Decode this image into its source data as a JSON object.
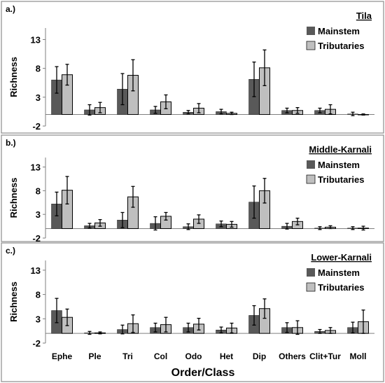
{
  "figure": {
    "xlabel": "Order/Class",
    "categories": [
      "Ephe",
      "Ple",
      "Tri",
      "Col",
      "Odo",
      "Het",
      "Dip",
      "Others",
      "Clit+Tur",
      "Moll"
    ],
    "colors": {
      "mainstem": "#595959",
      "tributaries": "#bfbfbf",
      "frame": "#8c8c8c"
    }
  },
  "chart_data": [
    {
      "type": "bar",
      "panel": "a.)",
      "title": "Tila",
      "ylabel": "Richness",
      "ylim": [
        -2,
        15
      ],
      "yticks": [
        -2,
        3,
        8,
        13
      ],
      "legend_position": "top-right",
      "categories": [
        "Ephe",
        "Ple",
        "Tri",
        "Col",
        "Odo",
        "Het",
        "Dip",
        "Others",
        "Clit+Tur",
        "Moll"
      ],
      "series": [
        {
          "name": "Mainstem",
          "values": [
            6.0,
            0.8,
            4.4,
            0.8,
            0.4,
            0.5,
            6.1,
            0.7,
            0.7,
            0.1
          ],
          "errors": [
            2.3,
            0.9,
            2.7,
            0.6,
            0.3,
            0.4,
            3.0,
            0.4,
            0.4,
            0.3
          ]
        },
        {
          "name": "Tributaries",
          "values": [
            6.9,
            1.2,
            6.8,
            2.2,
            1.1,
            0.2,
            8.1,
            0.7,
            0.9,
            0.0
          ],
          "errors": [
            1.8,
            0.9,
            2.7,
            1.2,
            0.8,
            0.2,
            3.1,
            0.5,
            0.8,
            0.1
          ]
        }
      ]
    },
    {
      "type": "bar",
      "panel": "b.)",
      "title": "Middle-Karnali",
      "ylabel": "Richness",
      "ylim": [
        -2,
        15
      ],
      "yticks": [
        -2,
        3,
        8,
        13
      ],
      "legend_position": "top-right",
      "categories": [
        "Ephe",
        "Ple",
        "Tri",
        "Col",
        "Odo",
        "Het",
        "Dip",
        "Others",
        "Clit+Tur",
        "Moll"
      ],
      "series": [
        {
          "name": "Mainstem",
          "values": [
            5.2,
            0.6,
            1.8,
            1.1,
            0.4,
            1.0,
            5.6,
            0.5,
            0.1,
            0.1
          ],
          "errors": [
            2.5,
            0.5,
            1.6,
            1.4,
            0.6,
            0.6,
            3.4,
            0.6,
            0.3,
            0.3
          ]
        },
        {
          "name": "Tributaries",
          "values": [
            8.1,
            1.2,
            6.7,
            2.6,
            2.0,
            0.9,
            8.0,
            1.5,
            0.3,
            0.1
          ],
          "errors": [
            2.9,
            0.7,
            2.2,
            0.8,
            0.9,
            0.6,
            2.6,
            0.7,
            0.3,
            0.4
          ]
        }
      ]
    },
    {
      "type": "bar",
      "panel": "c.)",
      "title": "Lower-Karnali",
      "ylabel": "Richness",
      "ylim": [
        -2,
        15
      ],
      "yticks": [
        -2,
        3,
        8,
        13
      ],
      "legend_position": "top-right",
      "categories": [
        "Ephe",
        "Ple",
        "Tri",
        "Col",
        "Odo",
        "Het",
        "Dip",
        "Others",
        "Clit+Tur",
        "Moll"
      ],
      "series": [
        {
          "name": "Mainstem",
          "values": [
            4.7,
            0.1,
            0.8,
            1.2,
            1.2,
            0.7,
            3.7,
            1.2,
            0.4,
            1.2
          ],
          "errors": [
            2.5,
            0.3,
            0.9,
            0.9,
            0.9,
            0.6,
            2.0,
            1.0,
            0.4,
            1.1
          ]
        },
        {
          "name": "Tributaries",
          "values": [
            3.3,
            0.1,
            2.0,
            1.8,
            1.9,
            1.1,
            5.1,
            1.2,
            0.6,
            2.4
          ],
          "errors": [
            1.7,
            0.2,
            1.8,
            1.5,
            1.2,
            1.0,
            2.0,
            1.4,
            0.6,
            2.4
          ]
        }
      ]
    }
  ]
}
